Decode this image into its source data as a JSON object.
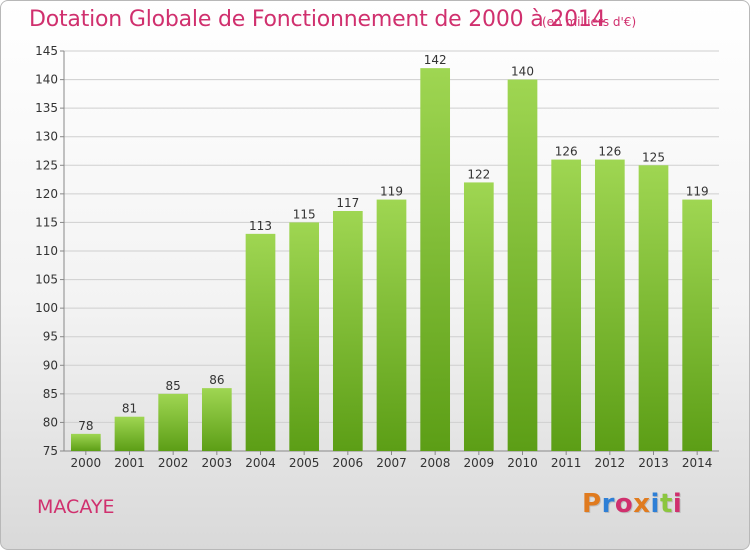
{
  "header": {
    "title": "Dotation Globale de Fonctionnement de 2000 à 2014",
    "subtitle": "(en milliers d'€)"
  },
  "footer": {
    "commune": "MACAYE",
    "logo": "Proxiti",
    "logo_colors": [
      "#e07b1f",
      "#2e7fd6",
      "#d0306e",
      "#e07b1f",
      "#2e7fd6",
      "#8cc63f",
      "#d0306e"
    ]
  },
  "colors": {
    "accent": "#d0306e",
    "bar_top": "#9fd652",
    "bar_bottom": "#5c9e16",
    "grid": "#cfcfcf",
    "axis": "#888888"
  },
  "chart_data": {
    "type": "bar",
    "title": "Dotation Globale de Fonctionnement de 2000 à 2014",
    "subtitle": "(en milliers d'€)",
    "xlabel": "",
    "ylabel": "",
    "categories": [
      "2000",
      "2001",
      "2002",
      "2003",
      "2004",
      "2005",
      "2006",
      "2007",
      "2008",
      "2009",
      "2010",
      "2011",
      "2012",
      "2013",
      "2014"
    ],
    "values": [
      78,
      81,
      85,
      86,
      113,
      115,
      117,
      119,
      142,
      122,
      140,
      126,
      126,
      125,
      119
    ],
    "ylim": [
      75,
      145
    ],
    "yticks": [
      75,
      80,
      85,
      90,
      95,
      100,
      105,
      110,
      115,
      120,
      125,
      130,
      135,
      140,
      145
    ],
    "grid": true,
    "legend": "none",
    "data_labels": true
  }
}
